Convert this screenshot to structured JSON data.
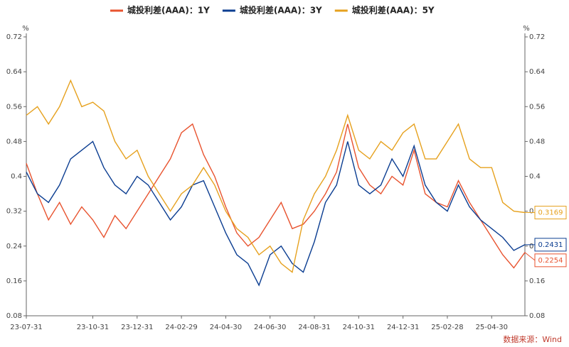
{
  "chart_data": {
    "type": "line",
    "y_unit": "%",
    "y2_unit": "%",
    "source": "数据来源：Wind",
    "categories": [
      "23-07-31",
      null,
      null,
      null,
      null,
      null,
      "23-10-31",
      null,
      null,
      null,
      "23-12-31",
      null,
      null,
      null,
      "24-02-29",
      null,
      null,
      null,
      "24-04-30",
      null,
      null,
      null,
      "24-06-30",
      null,
      null,
      null,
      "24-08-31",
      null,
      null,
      null,
      "24-10-31",
      null,
      null,
      null,
      "24-12-31",
      null,
      null,
      null,
      "25-02-28",
      null,
      null,
      null,
      "25-04-30",
      null,
      null,
      null
    ],
    "series": [
      {
        "name": "城投利差(AAA)：1Y",
        "color": "#e8532f",
        "values": [
          0.43,
          0.36,
          0.3,
          0.34,
          0.29,
          0.33,
          0.3,
          0.26,
          0.31,
          0.28,
          0.32,
          0.36,
          0.4,
          0.44,
          0.5,
          0.52,
          0.45,
          0.4,
          0.33,
          0.27,
          0.24,
          0.26,
          0.3,
          0.34,
          0.28,
          0.29,
          0.32,
          0.36,
          0.41,
          0.52,
          0.42,
          0.38,
          0.36,
          0.4,
          0.38,
          0.46,
          0.36,
          0.34,
          0.33,
          0.39,
          0.34,
          0.3,
          0.26,
          0.22,
          0.19,
          0.2254
        ]
      },
      {
        "name": "城投利差(AAA)：3Y",
        "color": "#0b3d91",
        "values": [
          0.41,
          0.36,
          0.34,
          0.38,
          0.44,
          0.46,
          0.48,
          0.42,
          0.38,
          0.36,
          0.4,
          0.38,
          0.34,
          0.3,
          0.33,
          0.38,
          0.39,
          0.33,
          0.27,
          0.22,
          0.2,
          0.15,
          0.22,
          0.24,
          0.2,
          0.18,
          0.25,
          0.34,
          0.38,
          0.48,
          0.38,
          0.36,
          0.38,
          0.44,
          0.4,
          0.47,
          0.38,
          0.34,
          0.32,
          0.38,
          0.33,
          0.3,
          0.28,
          0.26,
          0.23,
          0.2431
        ]
      },
      {
        "name": "城投利差(AAA)：5Y",
        "color": "#e6a11e",
        "values": [
          0.54,
          0.56,
          0.52,
          0.56,
          0.62,
          0.56,
          0.57,
          0.55,
          0.48,
          0.44,
          0.46,
          0.4,
          0.36,
          0.32,
          0.36,
          0.38,
          0.42,
          0.38,
          0.32,
          0.28,
          0.26,
          0.22,
          0.24,
          0.2,
          0.18,
          0.3,
          0.36,
          0.4,
          0.46,
          0.54,
          0.46,
          0.44,
          0.48,
          0.46,
          0.5,
          0.52,
          0.44,
          0.44,
          0.48,
          0.52,
          0.44,
          0.42,
          0.42,
          0.34,
          0.32,
          0.3169
        ]
      }
    ],
    "ylim": [
      0.08,
      0.72
    ],
    "yticks": [
      0.08,
      0.16,
      0.24,
      0.32,
      0.4,
      0.48,
      0.56,
      0.64,
      0.72
    ],
    "y2lim": [
      0.08,
      0.72
    ],
    "y2ticks": [
      0.08,
      0.16,
      0.24,
      0.32,
      0.4,
      0.48,
      0.56,
      0.64,
      0.72
    ]
  }
}
